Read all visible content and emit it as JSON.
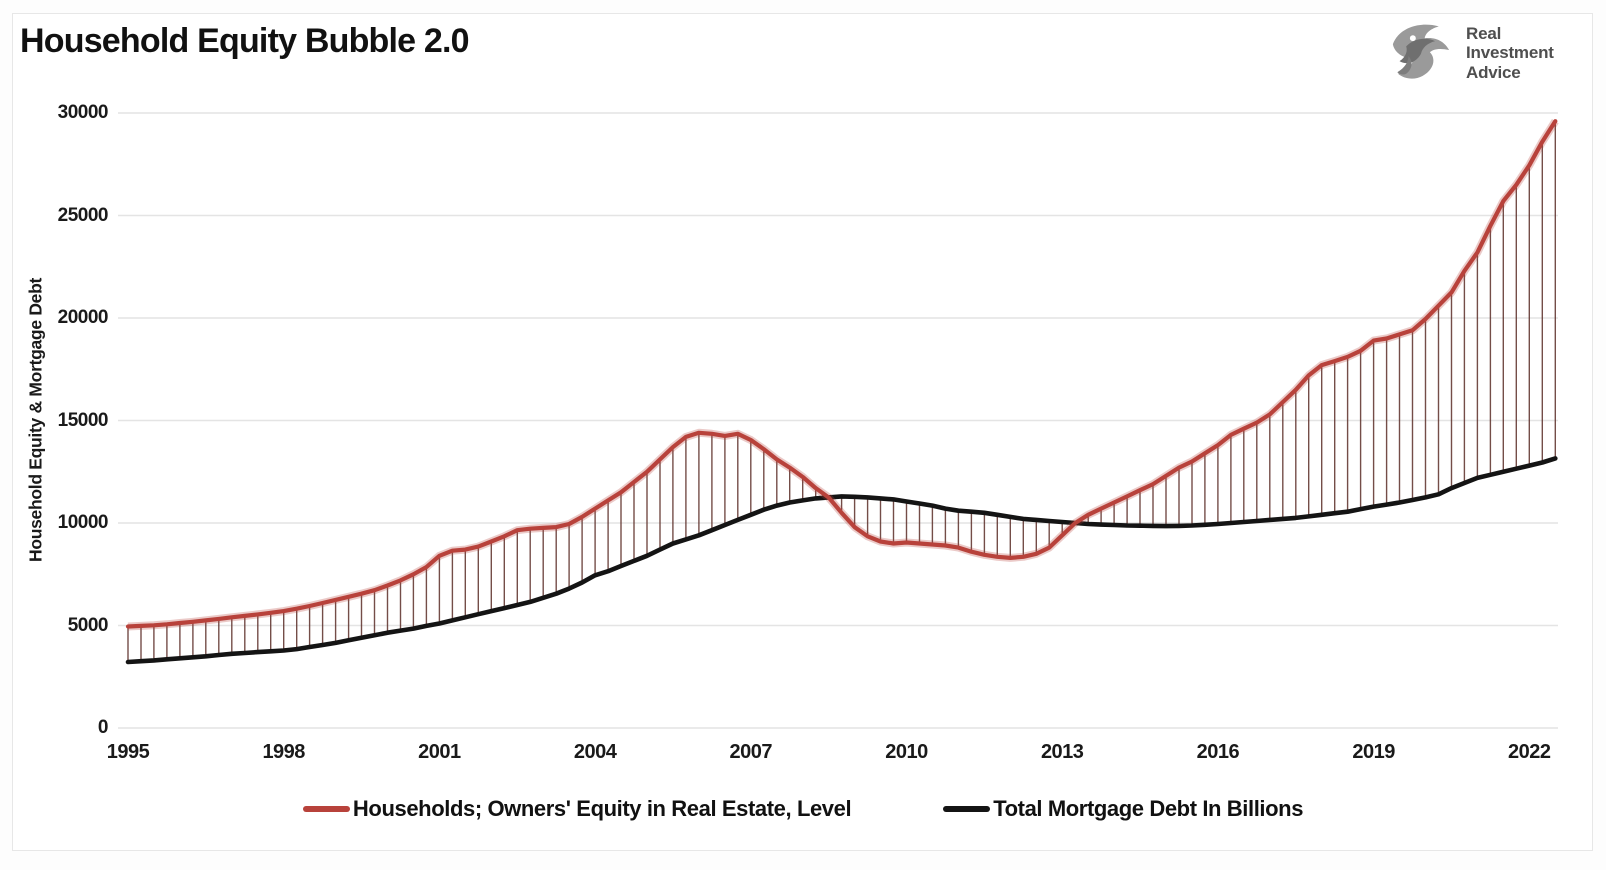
{
  "page": {
    "title": "Household Equity Bubble 2.0"
  },
  "logo": {
    "icon": "eagle-icon",
    "lines": [
      "Real",
      "Investment",
      "Advice"
    ]
  },
  "chart_data": {
    "type": "line",
    "title": "Household Equity Bubble 2.0",
    "xlabel": "",
    "ylabel": "Household Equity & Mortgage Debt",
    "ylim": [
      0,
      30000
    ],
    "yticks": [
      0,
      5000,
      10000,
      15000,
      20000,
      25000,
      30000
    ],
    "xticks": [
      1995,
      1998,
      2001,
      2004,
      2007,
      2010,
      2013,
      2016,
      2019,
      2022
    ],
    "x_start": 1995,
    "x_step_years": 0.25,
    "x_end": 2022.5,
    "grid": "horizontal",
    "legend_position": "bottom",
    "fill_between_style": "vertical-hatch-lines",
    "colors": {
      "equity_line": "#b8423b",
      "mortgage_line": "#141414",
      "hatch": "#5c2e29",
      "grid": "#e4e4e4",
      "text": "#1a1a1a",
      "logo_gray": "#4f4f4f"
    },
    "series": [
      {
        "name": "Households; Owners' Equity in Real Estate, Level",
        "color": "#b8423b",
        "values": [
          4950,
          4980,
          5010,
          5060,
          5120,
          5180,
          5250,
          5320,
          5400,
          5470,
          5540,
          5620,
          5700,
          5820,
          5950,
          6100,
          6250,
          6400,
          6550,
          6720,
          6950,
          7200,
          7500,
          7850,
          8400,
          8650,
          8700,
          8850,
          9100,
          9350,
          9650,
          9720,
          9760,
          9800,
          9950,
          10300,
          10700,
          11100,
          11500,
          12000,
          12500,
          13100,
          13700,
          14200,
          14400,
          14350,
          14250,
          14350,
          14050,
          13600,
          13100,
          12700,
          12250,
          11700,
          11250,
          10500,
          9800,
          9350,
          9100,
          9000,
          9050,
          9000,
          8950,
          8900,
          8800,
          8600,
          8450,
          8350,
          8300,
          8350,
          8500,
          8800,
          9400,
          10000,
          10400,
          10700,
          11000,
          11300,
          11600,
          11900,
          12300,
          12700,
          13000,
          13400,
          13800,
          14300,
          14600,
          14900,
          15300,
          15900,
          16500,
          17200,
          17700,
          17900,
          18100,
          18400,
          18900,
          19000,
          19200,
          19400,
          19950,
          20600,
          21250,
          22300,
          23200,
          24500,
          25700,
          26500,
          27450,
          28600,
          29600
        ]
      },
      {
        "name": "Total Mortgage Debt In Billions",
        "color": "#141414",
        "values": [
          3220,
          3260,
          3300,
          3350,
          3400,
          3450,
          3500,
          3560,
          3620,
          3660,
          3700,
          3740,
          3780,
          3850,
          3950,
          4050,
          4150,
          4280,
          4400,
          4520,
          4650,
          4750,
          4850,
          4980,
          5100,
          5250,
          5400,
          5550,
          5700,
          5850,
          6000,
          6150,
          6350,
          6550,
          6800,
          7100,
          7450,
          7650,
          7900,
          8150,
          8400,
          8700,
          9000,
          9200,
          9400,
          9650,
          9900,
          10150,
          10400,
          10650,
          10850,
          11000,
          11100,
          11200,
          11250,
          11300,
          11280,
          11250,
          11200,
          11150,
          11050,
          10950,
          10850,
          10700,
          10600,
          10550,
          10500,
          10400,
          10300,
          10200,
          10150,
          10100,
          10050,
          10000,
          9950,
          9920,
          9900,
          9880,
          9870,
          9860,
          9850,
          9860,
          9880,
          9910,
          9950,
          10000,
          10050,
          10100,
          10150,
          10200,
          10250,
          10320,
          10400,
          10480,
          10550,
          10680,
          10800,
          10900,
          11000,
          11120,
          11250,
          11400,
          11700,
          11950,
          12200,
          12350,
          12500,
          12650,
          12800,
          12950,
          13150
        ]
      }
    ]
  }
}
